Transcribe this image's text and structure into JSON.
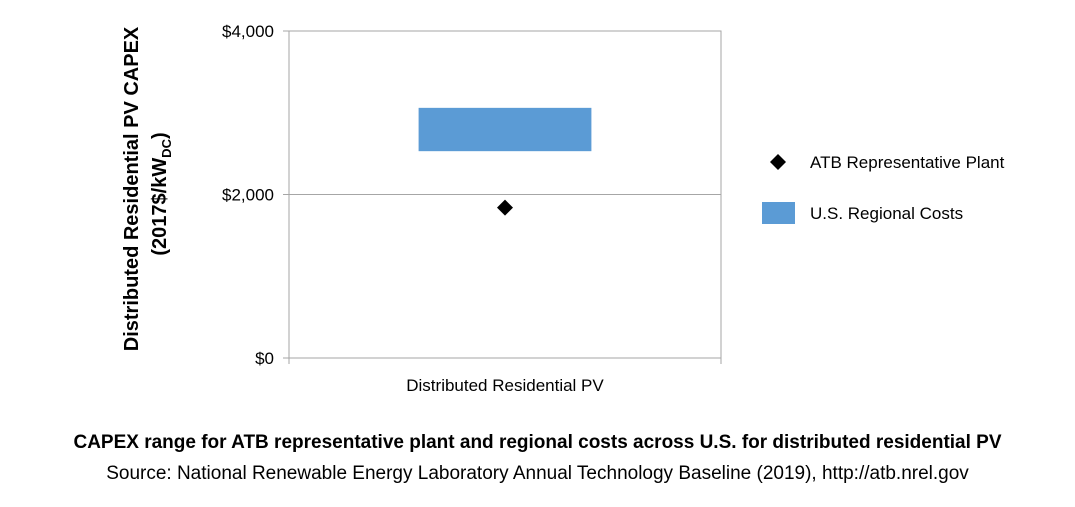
{
  "chart_data": {
    "type": "range-bar",
    "categories": [
      "Distributed Residential PV"
    ],
    "ylabel_line1": "Distributed Residential PV CAPEX",
    "ylabel_line2_main": "(2017$/kW",
    "ylabel_line2_sub": "DC",
    "ylabel_line2_close": ")",
    "ylim": [
      0,
      4000
    ],
    "yticks": [
      0,
      2000,
      4000
    ],
    "ytick_labels": [
      "$0",
      "$2,000",
      "$4,000"
    ],
    "grid": true,
    "legend_position": "right",
    "series": [
      {
        "name": "ATB Representative Plant",
        "marker": "diamond",
        "color": "#000000",
        "values": [
          1840
        ]
      },
      {
        "name": "U.S. Regional Costs",
        "marker": "range-bar",
        "color": "#5b9bd5",
        "low": [
          2530
        ],
        "high": [
          3060
        ]
      }
    ]
  },
  "caption": {
    "title": "CAPEX range for ATB representative plant and regional costs across U.S. for distributed residential PV",
    "source": "Source: National Renewable Energy Laboratory Annual Technology Baseline (2019), http://atb.nrel.gov"
  }
}
